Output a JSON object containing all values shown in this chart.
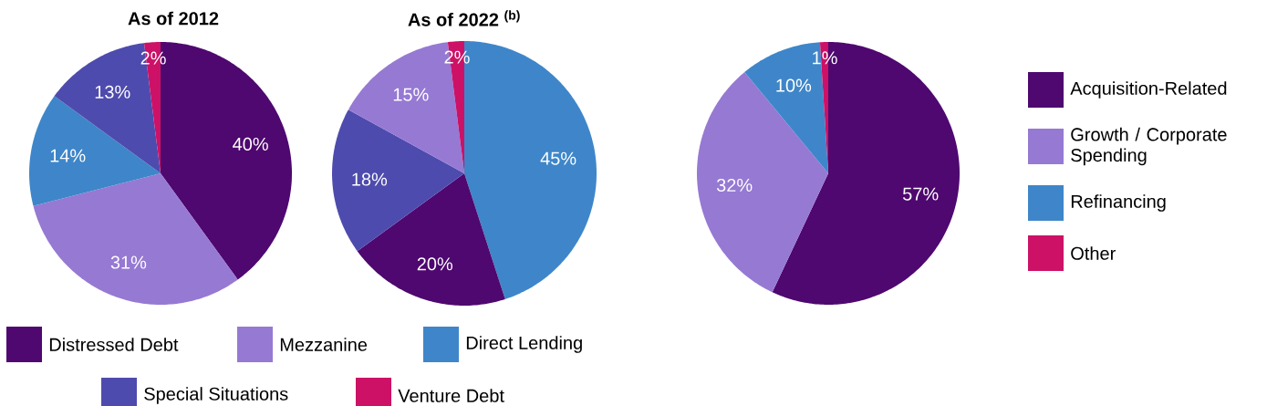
{
  "chart_data": [
    {
      "type": "pie",
      "title": "As of 2012",
      "categories": [
        "Distressed Debt",
        "Mezzanine",
        "Direct Lending",
        "Special Situations",
        "Venture Debt"
      ],
      "values": [
        40,
        31,
        14,
        13,
        2
      ],
      "value_labels": [
        "40%",
        "31%",
        "14%",
        "13%",
        "2%"
      ],
      "colors": [
        "#4e086f",
        "#9679d3",
        "#3e86c9",
        "#4e4bae",
        "#cc1167"
      ],
      "legend": "bottom"
    },
    {
      "type": "pie",
      "title": "As of 2022 $^{(b)}$",
      "categories": [
        null,
        null,
        null,
        null,
        null
      ],
      "values": [
        45,
        20,
        18,
        15,
        2
      ],
      "value_labels": [
        "45%",
        "20%",
        "18%",
        "15%",
        "2%"
      ],
      "colors": [
        "#3e86c9",
        "#4e086f",
        "#4e4bae",
        "#9679d3",
        "#cc1167"
      ]
    },
    {
      "type": "pie",
      "categories": [
        "Acquisition-Related",
        "Growth / Corporate Spending",
        "Refinancing",
        "Other"
      ],
      "values": [
        57,
        32,
        10,
        1
      ],
      "value_labels": [
        "57%",
        "32%",
        "10%",
        "1%"
      ],
      "colors": [
        "#4e086f",
        "#9679d3",
        "#3e86c9",
        "#cc1167"
      ],
      "legend": "right"
    }
  ]
}
